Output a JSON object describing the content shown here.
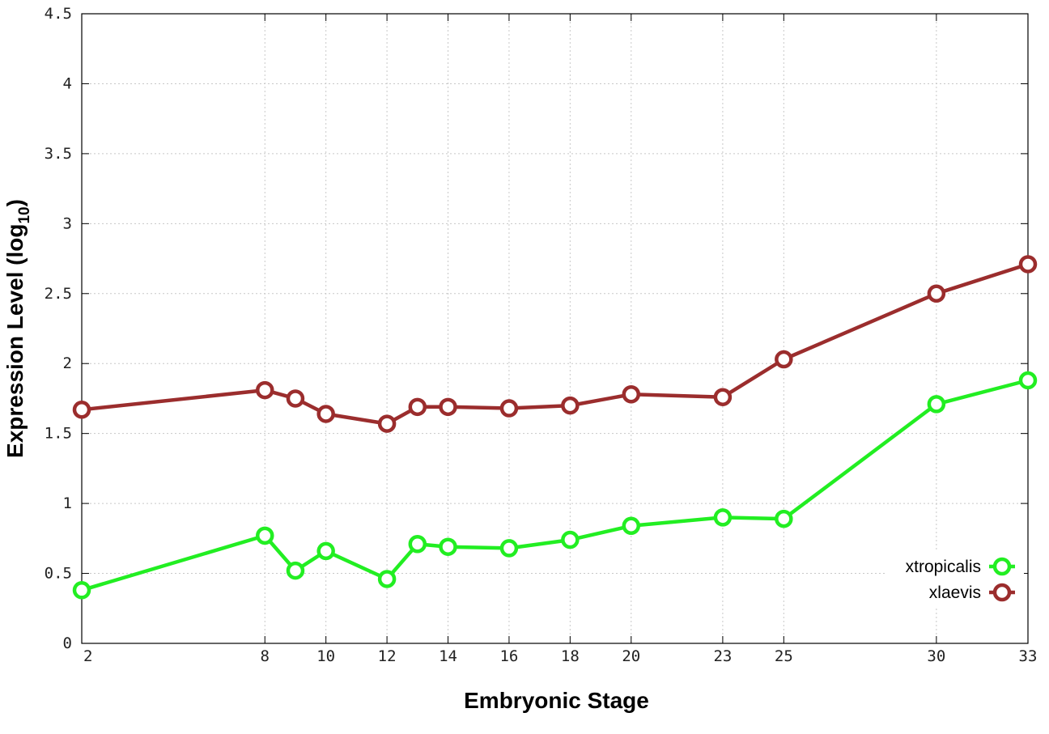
{
  "chart_data": {
    "type": "line",
    "title": "",
    "xlabel": "Embryonic Stage",
    "ylabel": {
      "main": "Expression Level (log",
      "sub": "10",
      "close": ")"
    },
    "x": [
      2,
      8,
      9,
      10,
      12,
      13,
      14,
      16,
      18,
      20,
      23,
      25,
      30,
      33
    ],
    "x_tick_labels": [
      "2",
      "8",
      "10",
      "12",
      "14",
      "16",
      "18",
      "20",
      "23",
      "25",
      "30",
      "33"
    ],
    "y_tick_labels": [
      "0",
      "0.5",
      "1",
      "1.5",
      "2",
      "2.5",
      "3",
      "3.5",
      "4",
      "4.5"
    ],
    "xlim": [
      2,
      33
    ],
    "ylim": [
      0,
      4.5
    ],
    "grid": true,
    "legend_position": "right",
    "series": [
      {
        "name": "xtropicalis",
        "color": "#22ee22",
        "values": [
          0.38,
          0.77,
          0.52,
          0.66,
          0.46,
          0.71,
          0.69,
          0.68,
          0.74,
          0.84,
          0.9,
          0.89,
          1.71,
          1.88
        ]
      },
      {
        "name": "xlaevis",
        "color": "#9b2d2d",
        "values": [
          1.67,
          1.81,
          1.75,
          1.64,
          1.57,
          1.69,
          1.69,
          1.68,
          1.7,
          1.78,
          1.76,
          2.03,
          2.5,
          2.71
        ]
      }
    ]
  }
}
